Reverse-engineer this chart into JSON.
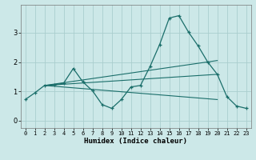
{
  "xlabel": "Humidex (Indice chaleur)",
  "bg_color": "#cce8e8",
  "line_color": "#1a6e6a",
  "grid_color": "#aacece",
  "xlim": [
    -0.5,
    23.5
  ],
  "ylim": [
    -0.25,
    3.95
  ],
  "yticks": [
    0,
    1,
    2,
    3
  ],
  "xticks": [
    0,
    1,
    2,
    3,
    4,
    5,
    6,
    7,
    8,
    9,
    10,
    11,
    12,
    13,
    14,
    15,
    16,
    17,
    18,
    19,
    20,
    21,
    22,
    23
  ],
  "main_series": {
    "x": [
      0,
      1,
      2,
      3,
      4,
      5,
      6,
      7,
      8,
      9,
      10,
      11,
      12,
      13,
      14,
      15,
      16,
      17,
      18,
      19,
      20,
      21,
      22,
      23
    ],
    "y": [
      0.72,
      0.95,
      1.2,
      1.22,
      1.28,
      1.78,
      1.32,
      1.02,
      0.55,
      0.42,
      0.72,
      1.15,
      1.2,
      1.85,
      2.6,
      3.5,
      3.58,
      3.02,
      2.55,
      2.0,
      1.58,
      0.82,
      0.5,
      0.42
    ]
  },
  "straight_lines": [
    {
      "x": [
        2,
        20
      ],
      "y": [
        1.2,
        2.05
      ]
    },
    {
      "x": [
        2,
        20
      ],
      "y": [
        1.2,
        1.58
      ]
    },
    {
      "x": [
        2,
        20
      ],
      "y": [
        1.2,
        0.72
      ]
    }
  ]
}
